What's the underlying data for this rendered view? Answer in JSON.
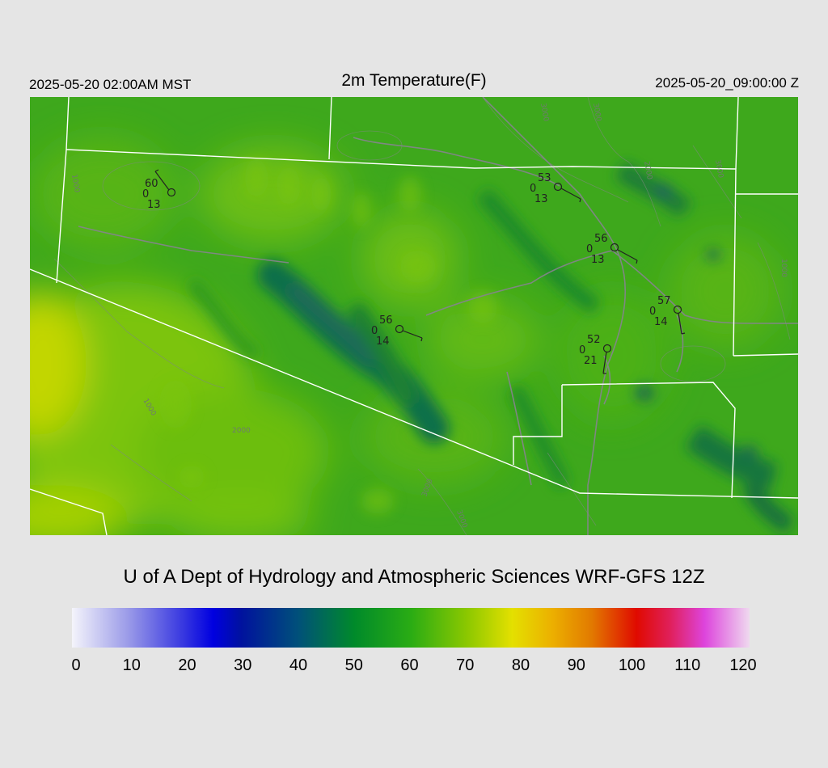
{
  "header": {
    "local_time": "2025-05-20 02:00AM MST",
    "title": "2m Temperature(F)",
    "utc_time": "2025-05-20_09:00:00 Z"
  },
  "credit": "U of A Dept of Hydrology and Atmospheric Sciences WRF-GFS 12Z",
  "colorbar": {
    "ticks": [
      "0",
      "10",
      "20",
      "30",
      "40",
      "50",
      "60",
      "70",
      "80",
      "90",
      "100",
      "110",
      "120"
    ],
    "stops": [
      {
        "value": 0,
        "color": "#f4f4fb"
      },
      {
        "value": 10,
        "color": "#9a9ae8"
      },
      {
        "value": 20,
        "color": "#3434e0"
      },
      {
        "value": 25,
        "color": "#0000e0"
      },
      {
        "value": 30,
        "color": "#00129e"
      },
      {
        "value": 40,
        "color": "#00507a"
      },
      {
        "value": 50,
        "color": "#008a2a"
      },
      {
        "value": 60,
        "color": "#2aac14"
      },
      {
        "value": 70,
        "color": "#8cc800"
      },
      {
        "value": 78,
        "color": "#e4e000"
      },
      {
        "value": 85,
        "color": "#ecb000"
      },
      {
        "value": 92,
        "color": "#e27a00"
      },
      {
        "value": 100,
        "color": "#e00a00"
      },
      {
        "value": 106,
        "color": "#e0205c"
      },
      {
        "value": 112,
        "color": "#dd44dc"
      },
      {
        "value": 120,
        "color": "#efd9ef"
      }
    ]
  },
  "stations": [
    {
      "id": "stn-1",
      "temp": "60",
      "cloud": "0",
      "dewpoint": "13"
    },
    {
      "id": "stn-2",
      "temp": "53",
      "cloud": "0",
      "dewpoint": "13"
    },
    {
      "id": "stn-3",
      "temp": "56",
      "cloud": "0",
      "dewpoint": "13"
    },
    {
      "id": "stn-4",
      "temp": "56",
      "cloud": "0",
      "dewpoint": "14"
    },
    {
      "id": "stn-5",
      "temp": "57",
      "cloud": "0",
      "dewpoint": "14"
    },
    {
      "id": "stn-6",
      "temp": "52",
      "cloud": "0",
      "dewpoint": "21"
    }
  ],
  "contour_labels": [
    "1000",
    "1000",
    "1000",
    "2000",
    "2000",
    "3000",
    "3000",
    "3000",
    "3000",
    "3000"
  ]
}
